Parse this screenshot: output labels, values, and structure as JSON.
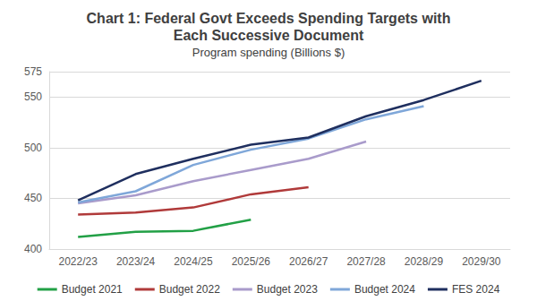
{
  "chart_data": {
    "type": "line",
    "title": "Chart 1: Federal Govt Exceeds Spending Targets with\nEach Successive Document",
    "subtitle": "Program spending (Billions $)",
    "categories": [
      "2022/23",
      "2023/24",
      "2024/25",
      "2025/26",
      "2026/27",
      "2027/28",
      "2028/29",
      "2029/30"
    ],
    "series": [
      {
        "name": "Budget 2021",
        "color": "#22a046",
        "values": [
          412,
          417,
          418,
          429,
          null,
          null,
          null,
          null
        ]
      },
      {
        "name": "Budget 2022",
        "color": "#b03a3a",
        "values": [
          434,
          436,
          441,
          454,
          461,
          null,
          null,
          null
        ]
      },
      {
        "name": "Budget 2023",
        "color": "#a99bcb",
        "values": [
          445,
          453,
          467,
          478,
          489,
          506,
          null,
          null
        ]
      },
      {
        "name": "Budget 2024",
        "color": "#7fa7d9",
        "values": [
          446,
          457,
          483,
          498,
          509,
          528,
          541,
          null
        ]
      },
      {
        "name": "FES 2024",
        "color": "#1f2f5f",
        "values": [
          448,
          474,
          489,
          503,
          510,
          531,
          547,
          566
        ]
      }
    ],
    "ylim": [
      400,
      575
    ],
    "yticks": [
      400,
      450,
      500,
      550
    ],
    "grid": true,
    "legend": "bottom"
  }
}
